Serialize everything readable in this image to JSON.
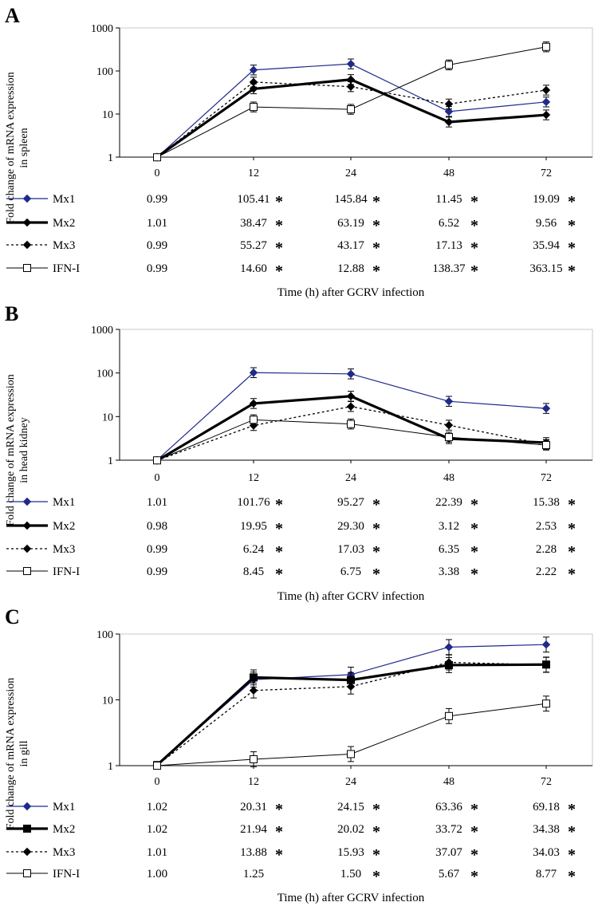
{
  "figure": {
    "star_symbol": "*"
  },
  "chart_data": [
    {
      "type": "line",
      "panel_label": "A",
      "scale": "log",
      "ylim": [
        1,
        1000
      ],
      "yticks": [
        "1",
        "10",
        "100",
        "1000"
      ],
      "categories": [
        "0",
        "12",
        "24",
        "48",
        "72"
      ],
      "ylabel": "Fold change of mRNA expression",
      "ylabel2": "in spleen",
      "xlabel": "Time (h) after GCRV infection",
      "series": [
        {
          "name": "Mx1",
          "style": "mx1",
          "values": [
            0.99,
            105.41,
            145.84,
            11.45,
            19.09
          ],
          "labels": [
            "0.99",
            "105.41",
            "145.84",
            "11.45",
            "19.09"
          ],
          "starred": [
            false,
            true,
            true,
            true,
            true
          ]
        },
        {
          "name": "Mx2",
          "style": "mx2",
          "values": [
            1.01,
            38.47,
            63.19,
            6.52,
            9.56
          ],
          "labels": [
            "1.01",
            "38.47",
            "63.19",
            "6.52",
            "9.56"
          ],
          "starred": [
            false,
            true,
            true,
            true,
            true
          ]
        },
        {
          "name": "Mx3",
          "style": "mx3",
          "values": [
            0.99,
            55.27,
            43.17,
            17.13,
            35.94
          ],
          "labels": [
            "0.99",
            "55.27",
            "43.17",
            "17.13",
            "35.94"
          ],
          "starred": [
            false,
            true,
            true,
            true,
            true
          ]
        },
        {
          "name": "IFN-I",
          "style": "ifn",
          "values": [
            0.99,
            14.6,
            12.88,
            138.37,
            363.15
          ],
          "labels": [
            "0.99",
            "14.60",
            "12.88",
            "138.37",
            "363.15"
          ],
          "starred": [
            false,
            true,
            true,
            true,
            true
          ]
        }
      ]
    },
    {
      "type": "line",
      "panel_label": "B",
      "scale": "log",
      "ylim": [
        1,
        1000
      ],
      "yticks": [
        "1",
        "10",
        "100",
        "1000"
      ],
      "categories": [
        "0",
        "12",
        "24",
        "48",
        "72"
      ],
      "ylabel": "Fold change of mRNA expression",
      "ylabel2": "in head kidney",
      "xlabel": "Time (h) after GCRV infection",
      "series": [
        {
          "name": "Mx1",
          "style": "mx1",
          "values": [
            1.01,
            101.76,
            95.27,
            22.39,
            15.38
          ],
          "labels": [
            "1.01",
            "101.76",
            "95.27",
            "22.39",
            "15.38"
          ],
          "starred": [
            false,
            true,
            true,
            true,
            true
          ]
        },
        {
          "name": "Mx2",
          "style": "mx2",
          "values": [
            0.98,
            19.95,
            29.3,
            3.12,
            2.53
          ],
          "labels": [
            "0.98",
            "19.95",
            "29.30",
            "3.12",
            "2.53"
          ],
          "starred": [
            false,
            true,
            true,
            true,
            true
          ]
        },
        {
          "name": "Mx3",
          "style": "mx3",
          "values": [
            0.99,
            6.24,
            17.03,
            6.35,
            2.28
          ],
          "labels": [
            "0.99",
            "6.24",
            "17.03",
            "6.35",
            "2.28"
          ],
          "starred": [
            false,
            true,
            true,
            true,
            true
          ]
        },
        {
          "name": "IFN-I",
          "style": "ifn",
          "values": [
            0.99,
            8.45,
            6.75,
            3.38,
            2.22
          ],
          "labels": [
            "0.99",
            "8.45",
            "6.75",
            "3.38",
            "2.22"
          ],
          "starred": [
            false,
            true,
            true,
            true,
            true
          ]
        }
      ]
    },
    {
      "type": "line",
      "panel_label": "C",
      "scale": "log",
      "ylim": [
        1,
        100
      ],
      "yticks": [
        "1",
        "10",
        "100"
      ],
      "categories": [
        "0",
        "12",
        "24",
        "48",
        "72"
      ],
      "ylabel": "Fold change of mRNA expression",
      "ylabel2": "in gill",
      "xlabel": "Time (h) after GCRV infection",
      "series": [
        {
          "name": "Mx1",
          "style": "mx1",
          "values": [
            1.02,
            20.31,
            24.15,
            63.36,
            69.18
          ],
          "labels": [
            "1.02",
            "20.31",
            "24.15",
            "63.36",
            "69.18"
          ],
          "starred": [
            false,
            true,
            true,
            true,
            true
          ]
        },
        {
          "name": "Mx2",
          "style": "mx2sq",
          "values": [
            1.02,
            21.94,
            20.02,
            33.72,
            34.38
          ],
          "labels": [
            "1.02",
            "21.94",
            "20.02",
            "33.72",
            "34.38"
          ],
          "starred": [
            false,
            true,
            true,
            true,
            true
          ]
        },
        {
          "name": "Mx3",
          "style": "mx3",
          "values": [
            1.01,
            13.88,
            15.93,
            37.07,
            34.03
          ],
          "labels": [
            "1.01",
            "13.88",
            "15.93",
            "37.07",
            "34.03"
          ],
          "starred": [
            false,
            true,
            true,
            true,
            true
          ]
        },
        {
          "name": "IFN-I",
          "style": "ifn",
          "values": [
            1.0,
            1.25,
            1.5,
            5.67,
            8.77
          ],
          "labels": [
            "1.00",
            "1.25",
            "1.50",
            "5.67",
            "8.77"
          ],
          "starred": [
            false,
            false,
            true,
            true,
            true
          ]
        }
      ]
    }
  ]
}
